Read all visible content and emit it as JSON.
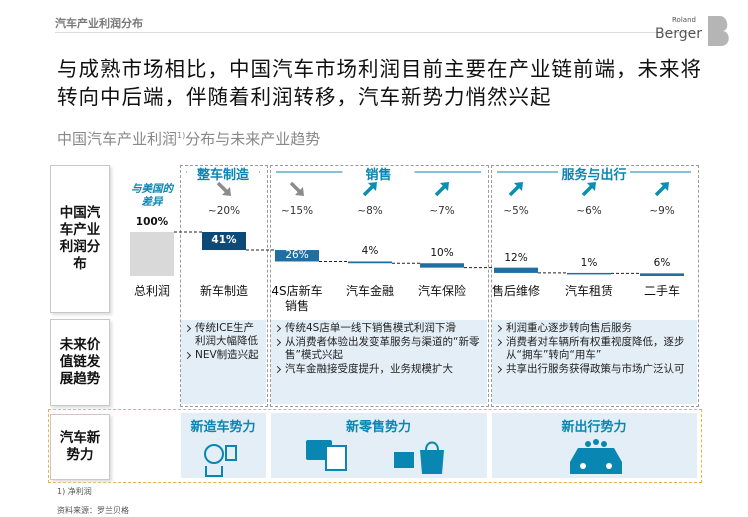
{
  "header": {
    "section": "汽车产业利润分布",
    "brand_small": "Roland",
    "brand": "Berger",
    "title": "与成熟市场相比，中国汽车市场利润目前主要在产业链前端，未来将转向中后端，伴随着利润转移，汽车新势力悄然兴起",
    "subtitle": "中国汽车产业利润",
    "subtitle_note": "1)",
    "subtitle_rest": "分布与未来产业趋势"
  },
  "rows": [
    "中国汽车产业利润分布",
    "未来价值链发展趋势",
    "汽车新势力"
  ],
  "chart_data": {
    "type": "waterfall",
    "groups": [
      "整车制造",
      "销售",
      "服务与出行"
    ],
    "categories": [
      "总利润",
      "新车制造",
      "4S店新车销售",
      "汽车金融",
      "汽车保险",
      "售后维修",
      "汽车租赁",
      "二手车"
    ],
    "values": [
      100,
      41,
      26,
      4,
      10,
      12,
      1,
      6
    ],
    "value_labels": [
      "100%",
      "41%",
      "26%",
      "4%",
      "10%",
      "12%",
      "1%",
      "6%"
    ],
    "total_color": "#d9d9d9",
    "color": "#1f6fa3",
    "highlight_color": "#0d4a78",
    "differences_label": "与美国的差异",
    "differences": [
      null,
      "~20%",
      "~15%",
      "~8%",
      "~7%",
      "~5%",
      "~6%",
      "~9%"
    ],
    "difference_trends": [
      null,
      "down",
      "down",
      "up",
      "up",
      "up",
      "up",
      "up"
    ]
  },
  "trends": [
    [
      "传统ICE生产利润大幅降低",
      "NEV制造兴起"
    ],
    [
      "传统4S店单一线下销售模式利润下滑",
      "从消费者体验出发变革服务与渠道的“新零售”模式兴起",
      "汽车金融接受度提升，业务规模扩大"
    ],
    [
      "利润重心逐步转向售后服务",
      "消费者对车辆所有权重视度降低，逐步从“拥车”转向“用车”",
      "共享出行服务获得政策与市场广泛认可"
    ]
  ],
  "new_forces": [
    "新造车势力",
    "新零售势力",
    "新出行势力"
  ],
  "footnote": "1) 净利润",
  "source": "资料来源：罗兰贝格"
}
